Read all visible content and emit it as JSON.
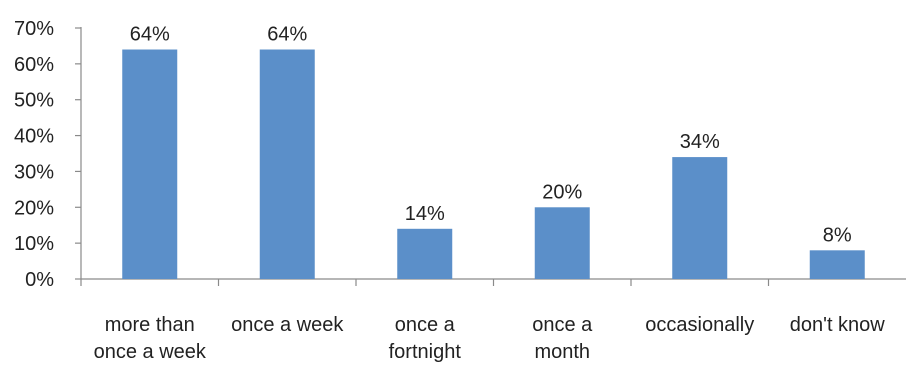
{
  "chart_data": {
    "type": "bar",
    "categories": [
      [
        "more than",
        "once a week"
      ],
      [
        "once a week"
      ],
      [
        "once a",
        "fortnight"
      ],
      [
        "once a",
        "month"
      ],
      [
        "occasionally"
      ],
      [
        "don't know"
      ]
    ],
    "values": [
      64,
      64,
      14,
      20,
      34,
      8
    ],
    "data_labels": [
      "64%",
      "64%",
      "14%",
      "20%",
      "34%",
      "8%"
    ],
    "ylim": [
      0,
      70
    ],
    "yticks": [
      0,
      10,
      20,
      30,
      40,
      50,
      60,
      70
    ],
    "ytick_labels": [
      "0%",
      "10%",
      "20%",
      "30%",
      "40%",
      "50%",
      "60%",
      "70%"
    ],
    "title": "",
    "xlabel": "",
    "ylabel": "",
    "grid": false,
    "legend": "none",
    "colors": {
      "bar": "#5B8FC9",
      "axis": "#8a8a8a",
      "text": "#222222"
    }
  }
}
